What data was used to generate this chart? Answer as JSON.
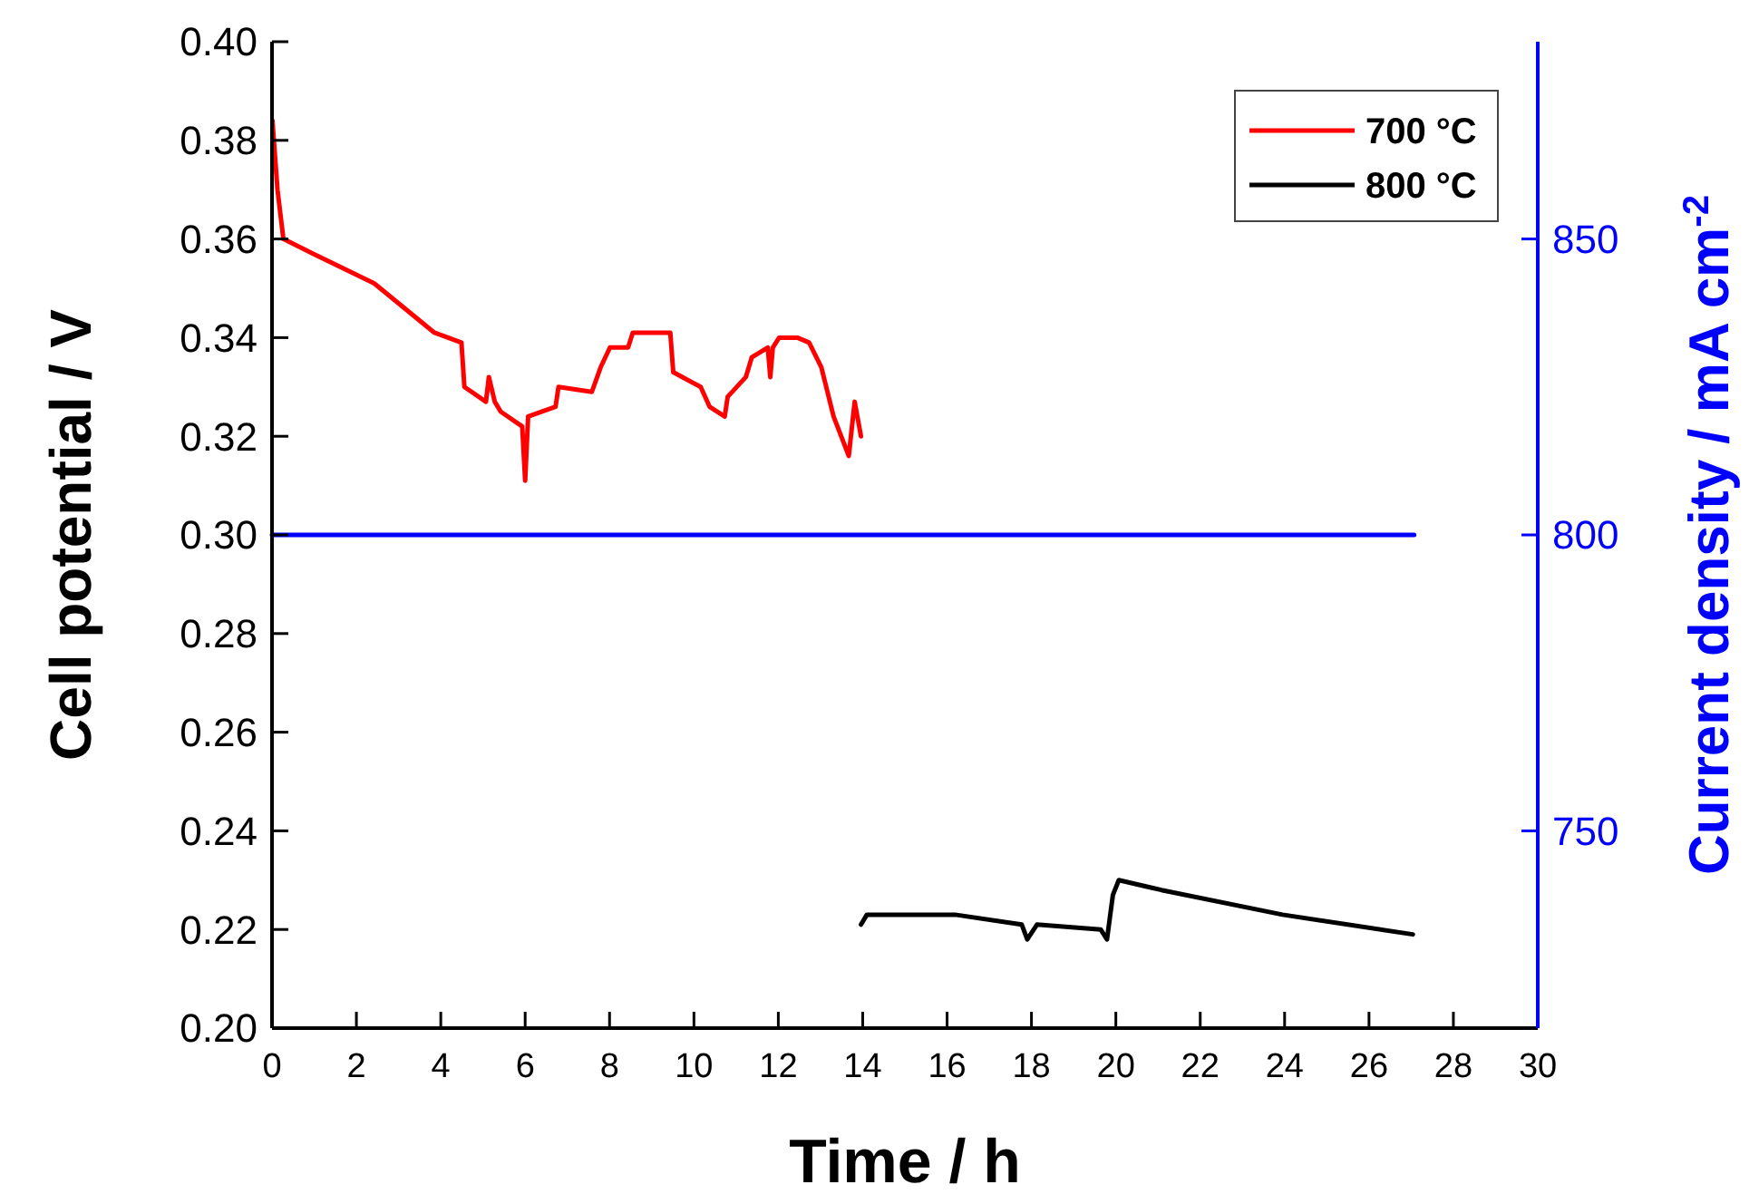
{
  "chart_data": {
    "type": "line",
    "xlabel": "Time / h",
    "ylabel": "Cell potential / V",
    "y2label": "Current density / mA cm$^{-2}$",
    "xlim": [
      0,
      30
    ],
    "xticks": [
      0,
      2,
      4,
      6,
      8,
      10,
      12,
      14,
      16,
      18,
      20,
      22,
      24,
      26,
      28,
      30
    ],
    "ylim": [
      0.2,
      0.4
    ],
    "yticks": [
      {
        "value": 0.2,
        "label": "0.20"
      },
      {
        "value": 0.22,
        "label": "0.22"
      },
      {
        "value": 0.24,
        "label": "0.24"
      },
      {
        "value": 0.26,
        "label": "0.26"
      },
      {
        "value": 0.28,
        "label": "0.28"
      },
      {
        "value": 0.3,
        "label": "0.30"
      },
      {
        "value": 0.32,
        "label": "0.32"
      },
      {
        "value": 0.34,
        "label": "0.34"
      },
      {
        "value": 0.36,
        "label": "0.36"
      },
      {
        "value": 0.38,
        "label": "0.38"
      },
      {
        "value": 0.4,
        "label": "0.40"
      }
    ],
    "y2lim": [
      716.67,
      883.33
    ],
    "y2ticks": [
      750,
      800,
      850
    ],
    "legend": "top right",
    "grid": false,
    "marker": "none",
    "line_style": "solid",
    "series": [
      {
        "name": "700 °C",
        "color": "#ff0000",
        "x": [
          0.01,
          0.13,
          0.27,
          0.98,
          2.42,
          3.85,
          4.49,
          4.56,
          5.07,
          5.14,
          5.28,
          5.42,
          5.93,
          6.0,
          6.07,
          6.72,
          6.79,
          7.58,
          7.79,
          8.01,
          8.44,
          8.55,
          9.44,
          9.51,
          10.16,
          10.37,
          10.73,
          10.8,
          11.23,
          11.37,
          11.75,
          11.81,
          11.87,
          12.02,
          12.45,
          12.73,
          13.02,
          13.31,
          13.67,
          13.81,
          13.96
        ],
        "values": [
          0.384,
          0.37,
          0.36,
          0.357,
          0.351,
          0.341,
          0.339,
          0.33,
          0.327,
          0.332,
          0.327,
          0.325,
          0.322,
          0.311,
          0.324,
          0.326,
          0.33,
          0.329,
          0.334,
          0.338,
          0.338,
          0.341,
          0.341,
          0.333,
          0.33,
          0.326,
          0.324,
          0.328,
          0.332,
          0.336,
          0.338,
          0.332,
          0.338,
          0.34,
          0.34,
          0.339,
          0.334,
          0.324,
          0.316,
          0.327,
          0.32
        ]
      },
      {
        "name": "800 °C",
        "color": "#000000",
        "x": [
          13.96,
          14.1,
          14.6,
          16.19,
          17.77,
          17.9,
          18.13,
          19.64,
          19.79,
          19.93,
          20.07,
          21.08,
          23.95,
          27.04
        ],
        "values": [
          0.221,
          0.223,
          0.223,
          0.223,
          0.221,
          0.218,
          0.221,
          0.22,
          0.218,
          0.227,
          0.23,
          0.228,
          0.223,
          0.219
        ]
      },
      {
        "color": "#0000ff",
        "axis": "y2",
        "x": [
          0,
          27.07
        ],
        "values": [
          800,
          800
        ]
      }
    ]
  }
}
